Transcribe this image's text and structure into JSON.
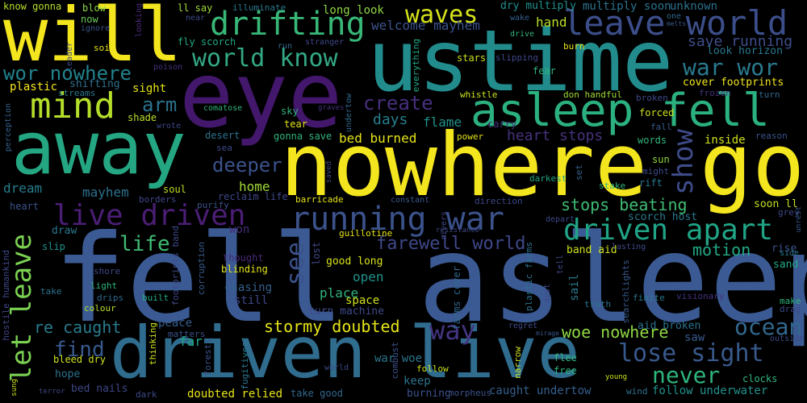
{
  "words": [
    {
      "t": "fell asleep",
      "c": "#3b5a93"
    },
    {
      "t": "nowhere go",
      "c": "#f4e61e"
    },
    {
      "t": "eye",
      "c": "#43176b"
    },
    {
      "t": "ustime",
      "c": "#228c8d"
    },
    {
      "t": "will",
      "c": "#f4e61e"
    },
    {
      "t": "away",
      "c": "#25a683"
    },
    {
      "t": "driven live",
      "c": "#2f6c8e"
    },
    {
      "t": "asleep fell",
      "c": "#2bb07f"
    },
    {
      "t": "mind",
      "c": "#b5de2b"
    },
    {
      "t": "drifting",
      "c": "#38b878"
    },
    {
      "t": "leave world",
      "c": "#3c4e8a"
    },
    {
      "t": "waves",
      "c": "#d5e21a"
    },
    {
      "t": "world know",
      "c": "#33a884"
    },
    {
      "t": "wor nowhere",
      "c": "#22838e"
    },
    {
      "t": "war wor",
      "c": "#2a7a8e"
    },
    {
      "t": "arm",
      "c": "#2c728e"
    },
    {
      "t": "create",
      "c": "#472f7d"
    },
    {
      "t": "live driven",
      "c": "#4a1e75"
    },
    {
      "t": "running war",
      "c": "#3b528b"
    },
    {
      "t": "driven apart",
      "c": "#20a486"
    },
    {
      "t": "farewell world",
      "c": "#3f4889"
    },
    {
      "t": "show",
      "c": "#3e4c8a"
    },
    {
      "t": "let leave",
      "c": "#7ad151"
    },
    {
      "t": "life",
      "c": "#3fbc73"
    },
    {
      "t": "see",
      "c": "#3b528b"
    },
    {
      "t": "way",
      "c": "#453581"
    },
    {
      "t": "ocean",
      "c": "#31688e"
    },
    {
      "t": "lose sight",
      "c": "#38598c"
    },
    {
      "t": "never",
      "c": "#2fb47c"
    },
    {
      "t": "stormy doubted",
      "c": "#e5e419"
    },
    {
      "t": "woe nowhere",
      "c": "#8fd744"
    },
    {
      "t": "find",
      "c": "#38598c"
    },
    {
      "t": "re caught",
      "c": "#297b8e"
    },
    {
      "t": "stops beating",
      "c": "#3fbc73"
    },
    {
      "t": "motion",
      "c": "#22a884"
    },
    {
      "t": "deeper",
      "c": "#3b528b"
    },
    {
      "t": "save running",
      "c": "#3d4d8a"
    },
    {
      "t": "heart stops",
      "c": "#46327e"
    },
    {
      "t": "days",
      "c": "#277f8e"
    },
    {
      "t": "flame",
      "c": "#20928c"
    },
    {
      "t": "bed burned",
      "c": "#e5e419"
    },
    {
      "t": "dream",
      "c": "#277f8e"
    },
    {
      "t": "mayhem",
      "c": "#2c728e"
    },
    {
      "t": "home",
      "c": "#a2da37"
    },
    {
      "t": "welcome mayhem",
      "c": "#3b528b"
    },
    {
      "t": "hand",
      "c": "#b8de29"
    },
    {
      "t": "long look",
      "c": "#8fd744"
    },
    {
      "t": "dry multiply",
      "c": "#20928c"
    },
    {
      "t": "multiply soon",
      "c": "#2c728e"
    },
    {
      "t": "unknown",
      "c": "#2d708e"
    },
    {
      "t": "look horizon",
      "c": "#2a788e"
    },
    {
      "t": "cover footprints",
      "c": "#f1e51d"
    },
    {
      "t": "sight",
      "c": "#e5e419"
    },
    {
      "t": "plastic",
      "c": "#f8e621"
    },
    {
      "t": "shifting",
      "c": "#2e6f8e"
    },
    {
      "t": "streams",
      "c": "#2a788e"
    },
    {
      "t": "open",
      "c": "#21918c"
    },
    {
      "t": "place",
      "c": "#2fb47c"
    },
    {
      "t": "space",
      "c": "#d0e11c"
    },
    {
      "t": "chasing",
      "c": "#35608d"
    },
    {
      "t": "still",
      "c": "#3f4889"
    },
    {
      "t": "won",
      "c": "#472c7a"
    },
    {
      "t": "peace",
      "c": "#365c8d"
    },
    {
      "t": "matters",
      "c": "#3b528b"
    },
    {
      "t": "far",
      "c": "#20a486"
    },
    {
      "t": "hope",
      "c": "#2c728e"
    },
    {
      "t": "bed nails",
      "c": "#3f4788"
    },
    {
      "t": "doubted relied",
      "c": "#e5e419"
    },
    {
      "t": "take good",
      "c": "#31688e"
    },
    {
      "t": "burning",
      "c": "#3b528b"
    },
    {
      "t": "caught undertow",
      "c": "#35608d"
    },
    {
      "t": "follow underwater",
      "c": "#20928c"
    },
    {
      "t": "keep",
      "c": "#2c728e"
    },
    {
      "t": "good long",
      "c": "#d8e219"
    },
    {
      "t": "turn machine",
      "c": "#3e4989"
    },
    {
      "t": "war woe",
      "c": "#2b758e"
    },
    {
      "t": "aid broken",
      "c": "#2c728e"
    },
    {
      "t": "saw",
      "c": "#38598c"
    },
    {
      "t": "inside",
      "c": "#d0e11c"
    },
    {
      "t": "scorch host",
      "c": "#2a788e"
    },
    {
      "t": "band aid",
      "c": "#cde11d"
    },
    {
      "t": "soon ll",
      "c": "#c2df23"
    },
    {
      "t": "grey",
      "c": "#3e4989"
    },
    {
      "t": "rise",
      "c": "#3b528b"
    },
    {
      "t": "sand",
      "c": "#22a884"
    },
    {
      "t": "draw",
      "c": "#2a788e"
    },
    {
      "t": "heart",
      "c": "#3b528b"
    },
    {
      "t": "slip",
      "c": "#21918c"
    },
    {
      "t": "soul",
      "c": "#bddf26"
    },
    {
      "t": "purify",
      "c": "#3b528b"
    },
    {
      "t": "reclaim life",
      "c": "#3f4889"
    },
    {
      "t": "barricade",
      "c": "#e5e419"
    },
    {
      "t": "guillotine",
      "c": "#e5e419"
    },
    {
      "t": "lost",
      "c": "#3f4889"
    },
    {
      "t": "thought",
      "c": "#482878"
    },
    {
      "t": "blinding",
      "c": "#e5e419"
    },
    {
      "t": "sail",
      "c": "#2a788e"
    },
    {
      "t": "plastic farms",
      "c": "#2c728e"
    },
    {
      "t": "farms cover",
      "c": "#31688e"
    },
    {
      "t": "know gonna",
      "c": "#b5de2b"
    },
    {
      "t": "blow",
      "c": "#8fd744"
    },
    {
      "t": "now",
      "c": "#6ccd5a"
    },
    {
      "t": "ignore",
      "c": "#3b528b"
    },
    {
      "t": "soil",
      "c": "#e5e419"
    },
    {
      "t": "ll say",
      "c": "#a2da37"
    },
    {
      "t": "illuminate",
      "c": "#2a788e"
    },
    {
      "t": "near",
      "c": "#3e4989"
    },
    {
      "t": "fly scorch",
      "c": "#22a884"
    },
    {
      "t": "run",
      "c": "#31688e"
    },
    {
      "t": "stranger",
      "c": "#3e4989"
    },
    {
      "t": "stars",
      "c": "#cde11d"
    },
    {
      "t": "slipping",
      "c": "#3f4889"
    },
    {
      "t": "burn",
      "c": "#e5e419"
    },
    {
      "t": "fear",
      "c": "#2fb47c"
    },
    {
      "t": "don handful",
      "c": "#a2da37"
    },
    {
      "t": "whistle",
      "c": "#cde11d"
    },
    {
      "t": "poison",
      "c": "#46327e"
    },
    {
      "t": "leader",
      "c": "#3e4989"
    },
    {
      "t": "looking",
      "c": "#482878"
    },
    {
      "t": "drive",
      "c": "#2fb47c"
    },
    {
      "t": "wake",
      "c": "#35608d"
    },
    {
      "t": "one",
      "c": "#31688e"
    },
    {
      "t": "melts",
      "c": "#38598c"
    },
    {
      "t": "shade",
      "c": "#b8de29"
    },
    {
      "t": "wrote",
      "c": "#3f4889"
    },
    {
      "t": "comatose",
      "c": "#2fb47c"
    },
    {
      "t": "sky",
      "c": "#2fb47c"
    },
    {
      "t": "graves",
      "c": "#46327e"
    },
    {
      "t": "tear",
      "c": "#e5e419"
    },
    {
      "t": "undertow",
      "c": "#31688e"
    },
    {
      "t": "everything",
      "c": "#22a884"
    },
    {
      "t": "broken",
      "c": "#3e4989"
    },
    {
      "t": "frozen",
      "c": "#46327e"
    },
    {
      "t": "turn",
      "c": "#31688e"
    },
    {
      "t": "forced",
      "c": "#cde11d"
    },
    {
      "t": "fall",
      "c": "#38598c"
    },
    {
      "t": "reason",
      "c": "#3b528b"
    },
    {
      "t": "words",
      "c": "#2fb47c"
    },
    {
      "t": "sun",
      "c": "#8fd744"
    },
    {
      "t": "might",
      "c": "#3e4989"
    },
    {
      "t": "rift",
      "c": "#2a788e"
    },
    {
      "t": "desert",
      "c": "#2c728e"
    },
    {
      "t": "gonna save",
      "c": "#2fb47c"
    },
    {
      "t": "sea",
      "c": "#3e4989"
    },
    {
      "t": "power",
      "c": "#e5e419"
    },
    {
      "t": "carry",
      "c": "#46327e"
    },
    {
      "t": "darkest",
      "c": "#22a884"
    },
    {
      "t": "saved",
      "c": "#3e4989"
    },
    {
      "t": "set",
      "c": "#35608d"
    },
    {
      "t": "stake",
      "c": "#2fb47c"
    },
    {
      "t": "perception",
      "c": "#35608d"
    },
    {
      "t": "borders",
      "c": "#3f4889"
    },
    {
      "t": "constant",
      "c": "#38598c"
    },
    {
      "t": "direction",
      "c": "#3e4989"
    },
    {
      "t": "rivers",
      "c": "#3e4989"
    },
    {
      "t": "resistance",
      "c": "#3f4889"
    },
    {
      "t": "depart",
      "c": "#3e4989"
    },
    {
      "t": "unrest",
      "c": "#38598c"
    },
    {
      "t": "hostile humankind",
      "c": "#3f4889"
    },
    {
      "t": "take",
      "c": "#2c728e"
    },
    {
      "t": "shore",
      "c": "#3e4989"
    },
    {
      "t": "light",
      "c": "#2fb47c"
    },
    {
      "t": "drips",
      "c": "#31688e"
    },
    {
      "t": "colour",
      "c": "#b5de2b"
    },
    {
      "t": "built",
      "c": "#22a884"
    },
    {
      "t": "corruption",
      "c": "#38598c"
    },
    {
      "t": "footprints band",
      "c": "#3e4989"
    },
    {
      "t": "dust",
      "c": "#3e4989"
    },
    {
      "t": "tell",
      "c": "#3e4989"
    },
    {
      "t": "finite",
      "c": "#2a788e"
    },
    {
      "t": "searchlights",
      "c": "#38598c"
    },
    {
      "t": "lasting",
      "c": "#3e4989"
    },
    {
      "t": "visionary",
      "c": "#46327e"
    },
    {
      "t": "make",
      "c": "#2fb47c"
    },
    {
      "t": "drag",
      "c": "#3e4989"
    },
    {
      "t": "side",
      "c": "#2a788e"
    },
    {
      "t": "truth",
      "c": "#2c728e"
    },
    {
      "t": "regret",
      "c": "#3e4989"
    },
    {
      "t": "mirage",
      "c": "#38598c"
    },
    {
      "t": "outside",
      "c": "#3e4989"
    },
    {
      "t": "clocks",
      "c": "#2fb47c"
    },
    {
      "t": "wind",
      "c": "#2c728e"
    },
    {
      "t": "young",
      "c": "#cde11d"
    },
    {
      "t": "flee",
      "c": "#2fb47c"
    },
    {
      "t": "free",
      "c": "#2fb47c"
    },
    {
      "t": "narrow",
      "c": "#cde11d"
    },
    {
      "t": "morpheus",
      "c": "#3b528b"
    },
    {
      "t": "follow",
      "c": "#cde11d"
    },
    {
      "t": "combust",
      "c": "#3b528b"
    },
    {
      "t": "world",
      "c": "#3e4989"
    },
    {
      "t": "fugitives",
      "c": "#2a788e"
    },
    {
      "t": "forests",
      "c": "#3b528b"
    },
    {
      "t": "thinking",
      "c": "#cde11d"
    },
    {
      "t": "dark",
      "c": "#3e4989"
    },
    {
      "t": "bleed dry",
      "c": "#cde11d"
    },
    {
      "t": "sung",
      "c": "#cde11d"
    },
    {
      "t": "terror",
      "c": "#3e4989"
    }
  ]
}
